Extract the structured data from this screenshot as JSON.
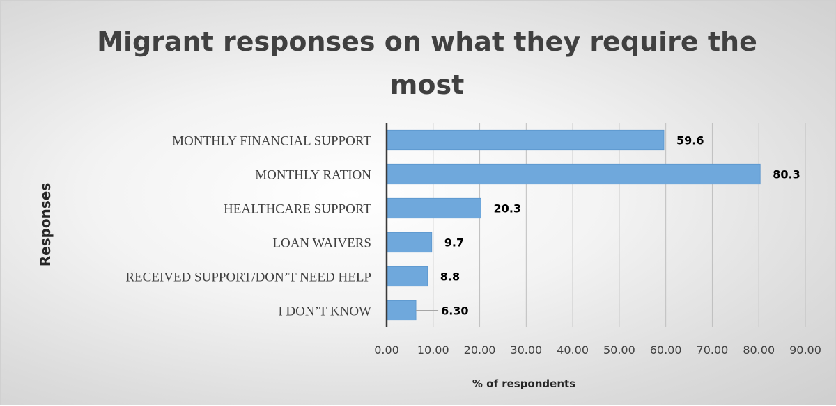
{
  "chart_data": {
    "type": "bar",
    "orientation": "horizontal",
    "title_lines": [
      "Migrant responses on what they require the",
      "most"
    ],
    "categories": [
      "MONTHLY FINANCIAL SUPPORT",
      "MONTHLY RATION",
      "HEALTHCARE SUPPORT",
      "LOAN WAIVERS",
      "RECEIVED SUPPORT/DON’T NEED HELP",
      "I DON’T KNOW"
    ],
    "values": [
      59.6,
      80.3,
      20.3,
      9.7,
      8.8,
      6.3
    ],
    "data_labels": [
      "59.6",
      "80.3",
      "20.3",
      "9.7",
      "8.8",
      "6.30"
    ],
    "xlabel": "% of respondents",
    "ylabel": "Responses",
    "xlim": [
      0,
      90
    ],
    "xticks": [
      0,
      10,
      20,
      30,
      40,
      50,
      60,
      70,
      80,
      90
    ],
    "xtick_labels": [
      "0.00",
      "10.00",
      "20.00",
      "30.00",
      "40.00",
      "50.00",
      "60.00",
      "70.00",
      "80.00",
      "90.00"
    ],
    "grid": "vertical",
    "legend": "none",
    "colors": {
      "bar": "#6fa8dc",
      "bar_edge": "#5b95cc",
      "grid": "#bfbfbf",
      "axis": "#3a3a3a"
    }
  }
}
